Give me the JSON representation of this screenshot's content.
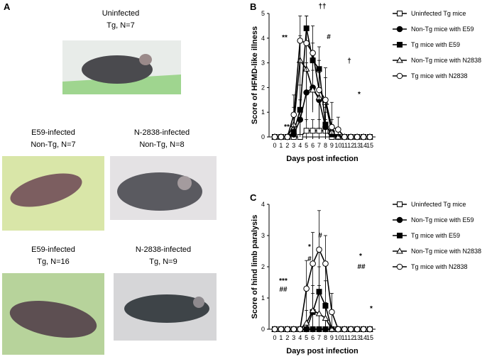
{
  "panel_a": {
    "label": "A",
    "photos": [
      {
        "title": "Uninfected",
        "group": "Tg, N=7"
      },
      {
        "title": "E59-infected",
        "group": "Non-Tg, N=7"
      },
      {
        "title": "N-2838-infected",
        "group": "Non-Tg, N=8"
      },
      {
        "title": "E59-infected",
        "group": "Tg, N=16"
      },
      {
        "title": "N-2838-infected",
        "group": "Tg, N=9"
      }
    ]
  },
  "chart_data": [
    {
      "type": "line",
      "panel": "B",
      "ylabel": "Score of HFMD-like illness",
      "xlabel": "Days post infection",
      "x": [
        0,
        1,
        2,
        3,
        4,
        5,
        6,
        7,
        8,
        9,
        10,
        11,
        12,
        13,
        14,
        15
      ],
      "xlim": [
        0,
        15
      ],
      "xticks": [
        0,
        1,
        2,
        3,
        4,
        5,
        6,
        7,
        8,
        9,
        10,
        11,
        12,
        13,
        14,
        15
      ],
      "ylim": [
        0,
        5
      ],
      "yticks": [
        0,
        1,
        2,
        3,
        4,
        5
      ],
      "series": [
        {
          "name": "Uninfected Tg mice",
          "color": "#000000",
          "marker": "open-square",
          "values": [
            0,
            0,
            0,
            0,
            0,
            0.25,
            0.25,
            0.25,
            0.25,
            0,
            0,
            0,
            0,
            0,
            0,
            0
          ],
          "errors": [
            null,
            null,
            null,
            null,
            null,
            0.45,
            0.45,
            0.45,
            0.45,
            null,
            null,
            null,
            null,
            null,
            null,
            null
          ]
        },
        {
          "name": "Non-Tg mice with E59",
          "color": "#000000",
          "marker": "filled-circle",
          "values": [
            0,
            0,
            0,
            0.1,
            0.7,
            1.8,
            2.0,
            1.5,
            0.4,
            0.2,
            0,
            0,
            0,
            0,
            0,
            0
          ],
          "errors": [
            null,
            null,
            null,
            0.3,
            0.8,
            1.2,
            1.0,
            1.2,
            0.6,
            0.3,
            null,
            null,
            null,
            null,
            null,
            null
          ]
        },
        {
          "name": "Tg mice with E59",
          "color": "#000000",
          "marker": "filled-square",
          "values": [
            0,
            0,
            0,
            0.2,
            1.1,
            4.4,
            3.1,
            2.75,
            0.5,
            0.1,
            0,
            0,
            0,
            0,
            0,
            0
          ],
          "errors": [
            null,
            null,
            null,
            null,
            1.0,
            0.5,
            0.7,
            0.9,
            0.7,
            0.3,
            null,
            null,
            null,
            null,
            null,
            null
          ]
        },
        {
          "name": "Non-Tg mice with N2838",
          "color": "#000000",
          "marker": "open-triangle",
          "values": [
            0,
            0,
            0,
            0.5,
            3.1,
            2.75,
            1.9,
            1.6,
            1.4,
            0.2,
            0,
            0,
            0,
            0,
            0,
            0
          ],
          "errors": [
            null,
            null,
            null,
            0.7,
            1.0,
            1.0,
            0.8,
            1.0,
            1.0,
            0.5,
            null,
            null,
            null,
            null,
            null,
            null
          ]
        },
        {
          "name": "Tg mice with N2838",
          "color": "#000000",
          "marker": "open-circle",
          "values": [
            0,
            0,
            0,
            0.9,
            3.9,
            3.8,
            3.4,
            1.9,
            1.5,
            0.4,
            0.3,
            0,
            0,
            0,
            0,
            0
          ],
          "errors": [
            null,
            null,
            null,
            0.8,
            1.0,
            1.1,
            1.1,
            1.2,
            1.3,
            1.0,
            0.5,
            null,
            null,
            null,
            null,
            null
          ]
        }
      ],
      "annotations": [
        "**",
        "**",
        "††",
        "#",
        "†",
        "*"
      ]
    },
    {
      "type": "line",
      "panel": "C",
      "ylabel": "Score of hind limb paralysis",
      "xlabel": "Days post infection",
      "x": [
        0,
        1,
        2,
        3,
        4,
        5,
        6,
        7,
        8,
        9,
        10,
        11,
        12,
        13,
        14,
        15
      ],
      "xlim": [
        0,
        15
      ],
      "xticks": [
        0,
        1,
        2,
        3,
        4,
        5,
        6,
        7,
        8,
        9,
        10,
        11,
        12,
        13,
        14,
        15
      ],
      "ylim": [
        0,
        4
      ],
      "yticks": [
        0,
        1,
        2,
        3,
        4
      ],
      "series": [
        {
          "name": "Uninfected Tg mice",
          "color": "#000000",
          "marker": "open-square",
          "values": [
            0,
            0,
            0,
            0,
            0,
            0,
            0,
            0,
            0,
            0,
            0,
            0,
            0,
            0,
            0,
            0
          ],
          "errors": [
            null,
            null,
            null,
            null,
            null,
            null,
            null,
            null,
            null,
            null,
            null,
            null,
            null,
            null,
            null,
            null
          ]
        },
        {
          "name": "Non-Tg mice with E59",
          "color": "#000000",
          "marker": "filled-circle",
          "values": [
            0,
            0,
            0,
            0,
            0,
            0,
            0,
            0,
            0,
            0,
            0,
            0,
            0,
            0,
            0,
            0
          ],
          "errors": [
            null,
            null,
            null,
            null,
            null,
            null,
            null,
            null,
            null,
            null,
            null,
            null,
            null,
            null,
            null,
            null
          ]
        },
        {
          "name": "Tg mice with E59",
          "color": "#000000",
          "marker": "filled-square",
          "values": [
            0,
            0,
            0,
            0,
            0,
            0,
            0.55,
            1.2,
            0.75,
            0,
            0,
            0,
            0,
            0,
            0,
            0
          ],
          "errors": [
            null,
            null,
            null,
            null,
            null,
            null,
            0.6,
            0.8,
            0.8,
            null,
            null,
            null,
            null,
            null,
            null,
            null
          ]
        },
        {
          "name": "Non-Tg mice with N2838",
          "color": "#000000",
          "marker": "open-triangle",
          "values": [
            0,
            0,
            0,
            0,
            0,
            0.2,
            0.6,
            0.5,
            0.35,
            0,
            0,
            0,
            0,
            0,
            0,
            0
          ],
          "errors": [
            null,
            null,
            null,
            null,
            null,
            0.4,
            0.8,
            0.9,
            0.5,
            null,
            null,
            null,
            null,
            null,
            null,
            null
          ]
        },
        {
          "name": "Tg mice with N2838",
          "color": "#000000",
          "marker": "open-circle",
          "values": [
            0,
            0,
            0,
            0,
            0,
            1.3,
            2.1,
            2.55,
            2.1,
            0.55,
            0,
            0,
            0,
            0,
            0,
            0
          ],
          "errors": [
            null,
            null,
            null,
            null,
            null,
            0.9,
            1.0,
            1.25,
            0.9,
            0.6,
            null,
            null,
            null,
            null,
            null,
            null
          ]
        }
      ],
      "annotations": [
        "***",
        "##",
        "*",
        "#",
        "#",
        "*",
        "##",
        "*"
      ]
    }
  ]
}
